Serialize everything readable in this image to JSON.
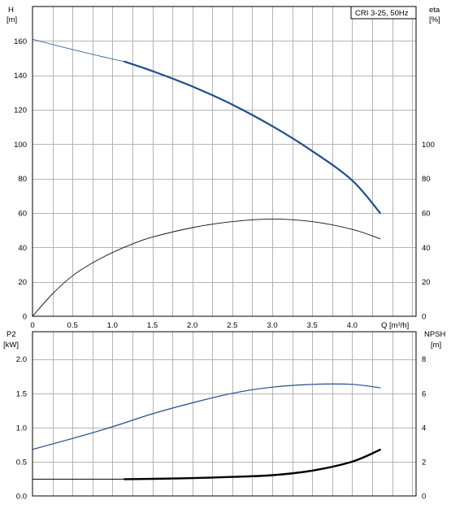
{
  "chart_data": [
    {
      "type": "line",
      "legend_box": "CRI 3-25, 50Hz",
      "xlabel": "Q [m³/h]",
      "x_ticks": [
        "0",
        "0.5",
        "1.0",
        "1.5",
        "2.0",
        "2.5",
        "3.0",
        "3.5",
        "4.0"
      ],
      "xlim": [
        0,
        4.8
      ],
      "y_left": {
        "label_top": "H",
        "label_unit": "[m]",
        "ylim": [
          0,
          180
        ],
        "ticks": [
          "0",
          "20",
          "40",
          "60",
          "80",
          "100",
          "120",
          "140",
          "160"
        ]
      },
      "y_right": {
        "label_top": "eta",
        "label_unit": "[%]",
        "ylim": [
          0,
          180
        ],
        "ticks": [
          "0",
          "20",
          "40",
          "60",
          "80",
          "100"
        ]
      },
      "series": [
        {
          "axis": "left",
          "color": "#1f4e8c",
          "thin_until": 1.15,
          "points": [
            [
              0,
              161
            ],
            [
              0.5,
              155
            ],
            [
              1.0,
              149.5
            ],
            [
              1.15,
              148
            ],
            [
              1.5,
              142.5
            ],
            [
              2.0,
              133.5
            ],
            [
              2.5,
              123
            ],
            [
              3.0,
              110.5
            ],
            [
              3.5,
              96
            ],
            [
              4.0,
              79
            ],
            [
              4.35,
              60
            ]
          ]
        },
        {
          "axis": "right",
          "color": "#111111",
          "points": [
            [
              0,
              0
            ],
            [
              0.25,
              13
            ],
            [
              0.5,
              23.5
            ],
            [
              0.75,
              31
            ],
            [
              1.0,
              37
            ],
            [
              1.25,
              42
            ],
            [
              1.5,
              46
            ],
            [
              2.0,
              51.5
            ],
            [
              2.5,
              55
            ],
            [
              3.0,
              56.5
            ],
            [
              3.5,
              55
            ],
            [
              4.0,
              50.5
            ],
            [
              4.35,
              45
            ]
          ]
        }
      ]
    },
    {
      "type": "line",
      "y_left": {
        "label_top": "P2",
        "label_unit": "[kW]",
        "ylim": [
          0,
          2.4
        ],
        "ticks": [
          "0.0",
          "0.5",
          "1.0",
          "1.5",
          "2.0"
        ]
      },
      "y_right": {
        "label_top": "NPSH",
        "label_unit": "[m]",
        "ylim": [
          0,
          9.6
        ],
        "ticks": [
          "0",
          "2",
          "4",
          "6",
          "8"
        ]
      },
      "xlim": [
        0,
        4.8
      ],
      "series": [
        {
          "axis": "left",
          "color": "#1f4e8c",
          "points": [
            [
              0,
              0.68
            ],
            [
              0.5,
              0.84
            ],
            [
              1.0,
              1.01
            ],
            [
              1.5,
              1.2
            ],
            [
              2.0,
              1.36
            ],
            [
              2.5,
              1.5
            ],
            [
              3.0,
              1.59
            ],
            [
              3.5,
              1.63
            ],
            [
              4.0,
              1.63
            ],
            [
              4.35,
              1.58
            ]
          ]
        },
        {
          "axis": "right",
          "color": "#000000",
          "thick_from": 1.15,
          "points": [
            [
              0,
              0.98
            ],
            [
              1.15,
              0.98
            ],
            [
              1.5,
              1.0
            ],
            [
              2.0,
              1.04
            ],
            [
              2.5,
              1.11
            ],
            [
              3.0,
              1.21
            ],
            [
              3.5,
              1.48
            ],
            [
              4.0,
              2.0
            ],
            [
              4.35,
              2.7
            ]
          ]
        }
      ]
    }
  ]
}
